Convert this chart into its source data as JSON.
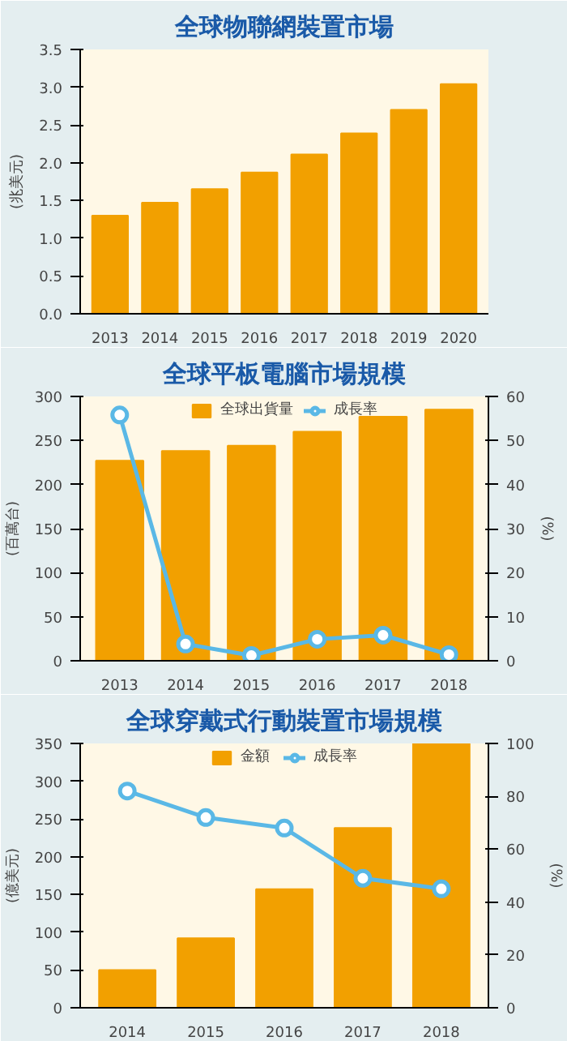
{
  "chart_data": [
    {
      "type": "bar",
      "title": "全球物聯網裝置市場",
      "ylabel": "(兆美元)",
      "categories": [
        "2013",
        "2014",
        "2015",
        "2016",
        "2017",
        "2018",
        "2019",
        "2020"
      ],
      "series": [
        {
          "color": "#f2a000",
          "values": [
            1.3,
            1.47,
            1.65,
            1.87,
            2.11,
            2.39,
            2.7,
            3.04
          ]
        }
      ],
      "ylim": [
        0,
        3.5
      ],
      "yticks": [
        {
          "value": 0,
          "label": "0.0"
        },
        0.5,
        {
          "value": 1,
          "label": "1.0"
        },
        1.5,
        {
          "value": 2,
          "label": "2.0"
        },
        2.5,
        {
          "value": 3,
          "label": "3.0"
        },
        3.5
      ],
      "grid": false,
      "legend": false
    },
    {
      "type": "bar",
      "title": "全球平板電腦市場規模",
      "ylabel": "(百萬台)",
      "y2label": "(%)",
      "categories": [
        "2013",
        "2014",
        "2015",
        "2016",
        "2017",
        "2018"
      ],
      "series": [
        {
          "name": "全球出貨量",
          "color": "#f2a000",
          "values": [
            227,
            238,
            244,
            260,
            277,
            285
          ]
        },
        {
          "name": "成長率",
          "type": "line",
          "axis": "y2",
          "color": "#5ab8e6",
          "marker": "circle",
          "values": [
            55.8,
            3.8,
            1.2,
            4.9,
            5.8,
            1.4
          ]
        }
      ],
      "ylim": [
        0,
        300
      ],
      "yticks": [
        0,
        50,
        100,
        150,
        200,
        250,
        300
      ],
      "y2lim": [
        0,
        60
      ],
      "y2ticks": [
        0,
        10,
        20,
        30,
        40,
        50,
        60
      ],
      "grid": false,
      "legend": "top"
    },
    {
      "type": "bar",
      "title": "全球穿戴式行動裝置市場規模",
      "ylabel": "(億美元)",
      "y2label": "(%)",
      "categories": [
        "2014",
        "2015",
        "2016",
        "2017",
        "2018"
      ],
      "series": [
        {
          "name": "金額",
          "color": "#f2a000",
          "values": [
            50,
            92,
            157,
            238,
            350
          ]
        },
        {
          "name": "成長率",
          "type": "line",
          "axis": "y2",
          "color": "#5ab8e6",
          "marker": "circle",
          "values": [
            82,
            72,
            68,
            49,
            45
          ]
        }
      ],
      "ylim": [
        0,
        350
      ],
      "yticks": [
        0,
        50,
        100,
        150,
        200,
        250,
        300,
        350
      ],
      "y2lim": [
        0,
        100
      ],
      "y2ticks": [
        0,
        20,
        40,
        60,
        80,
        100
      ],
      "grid": false,
      "legend": "top"
    }
  ]
}
